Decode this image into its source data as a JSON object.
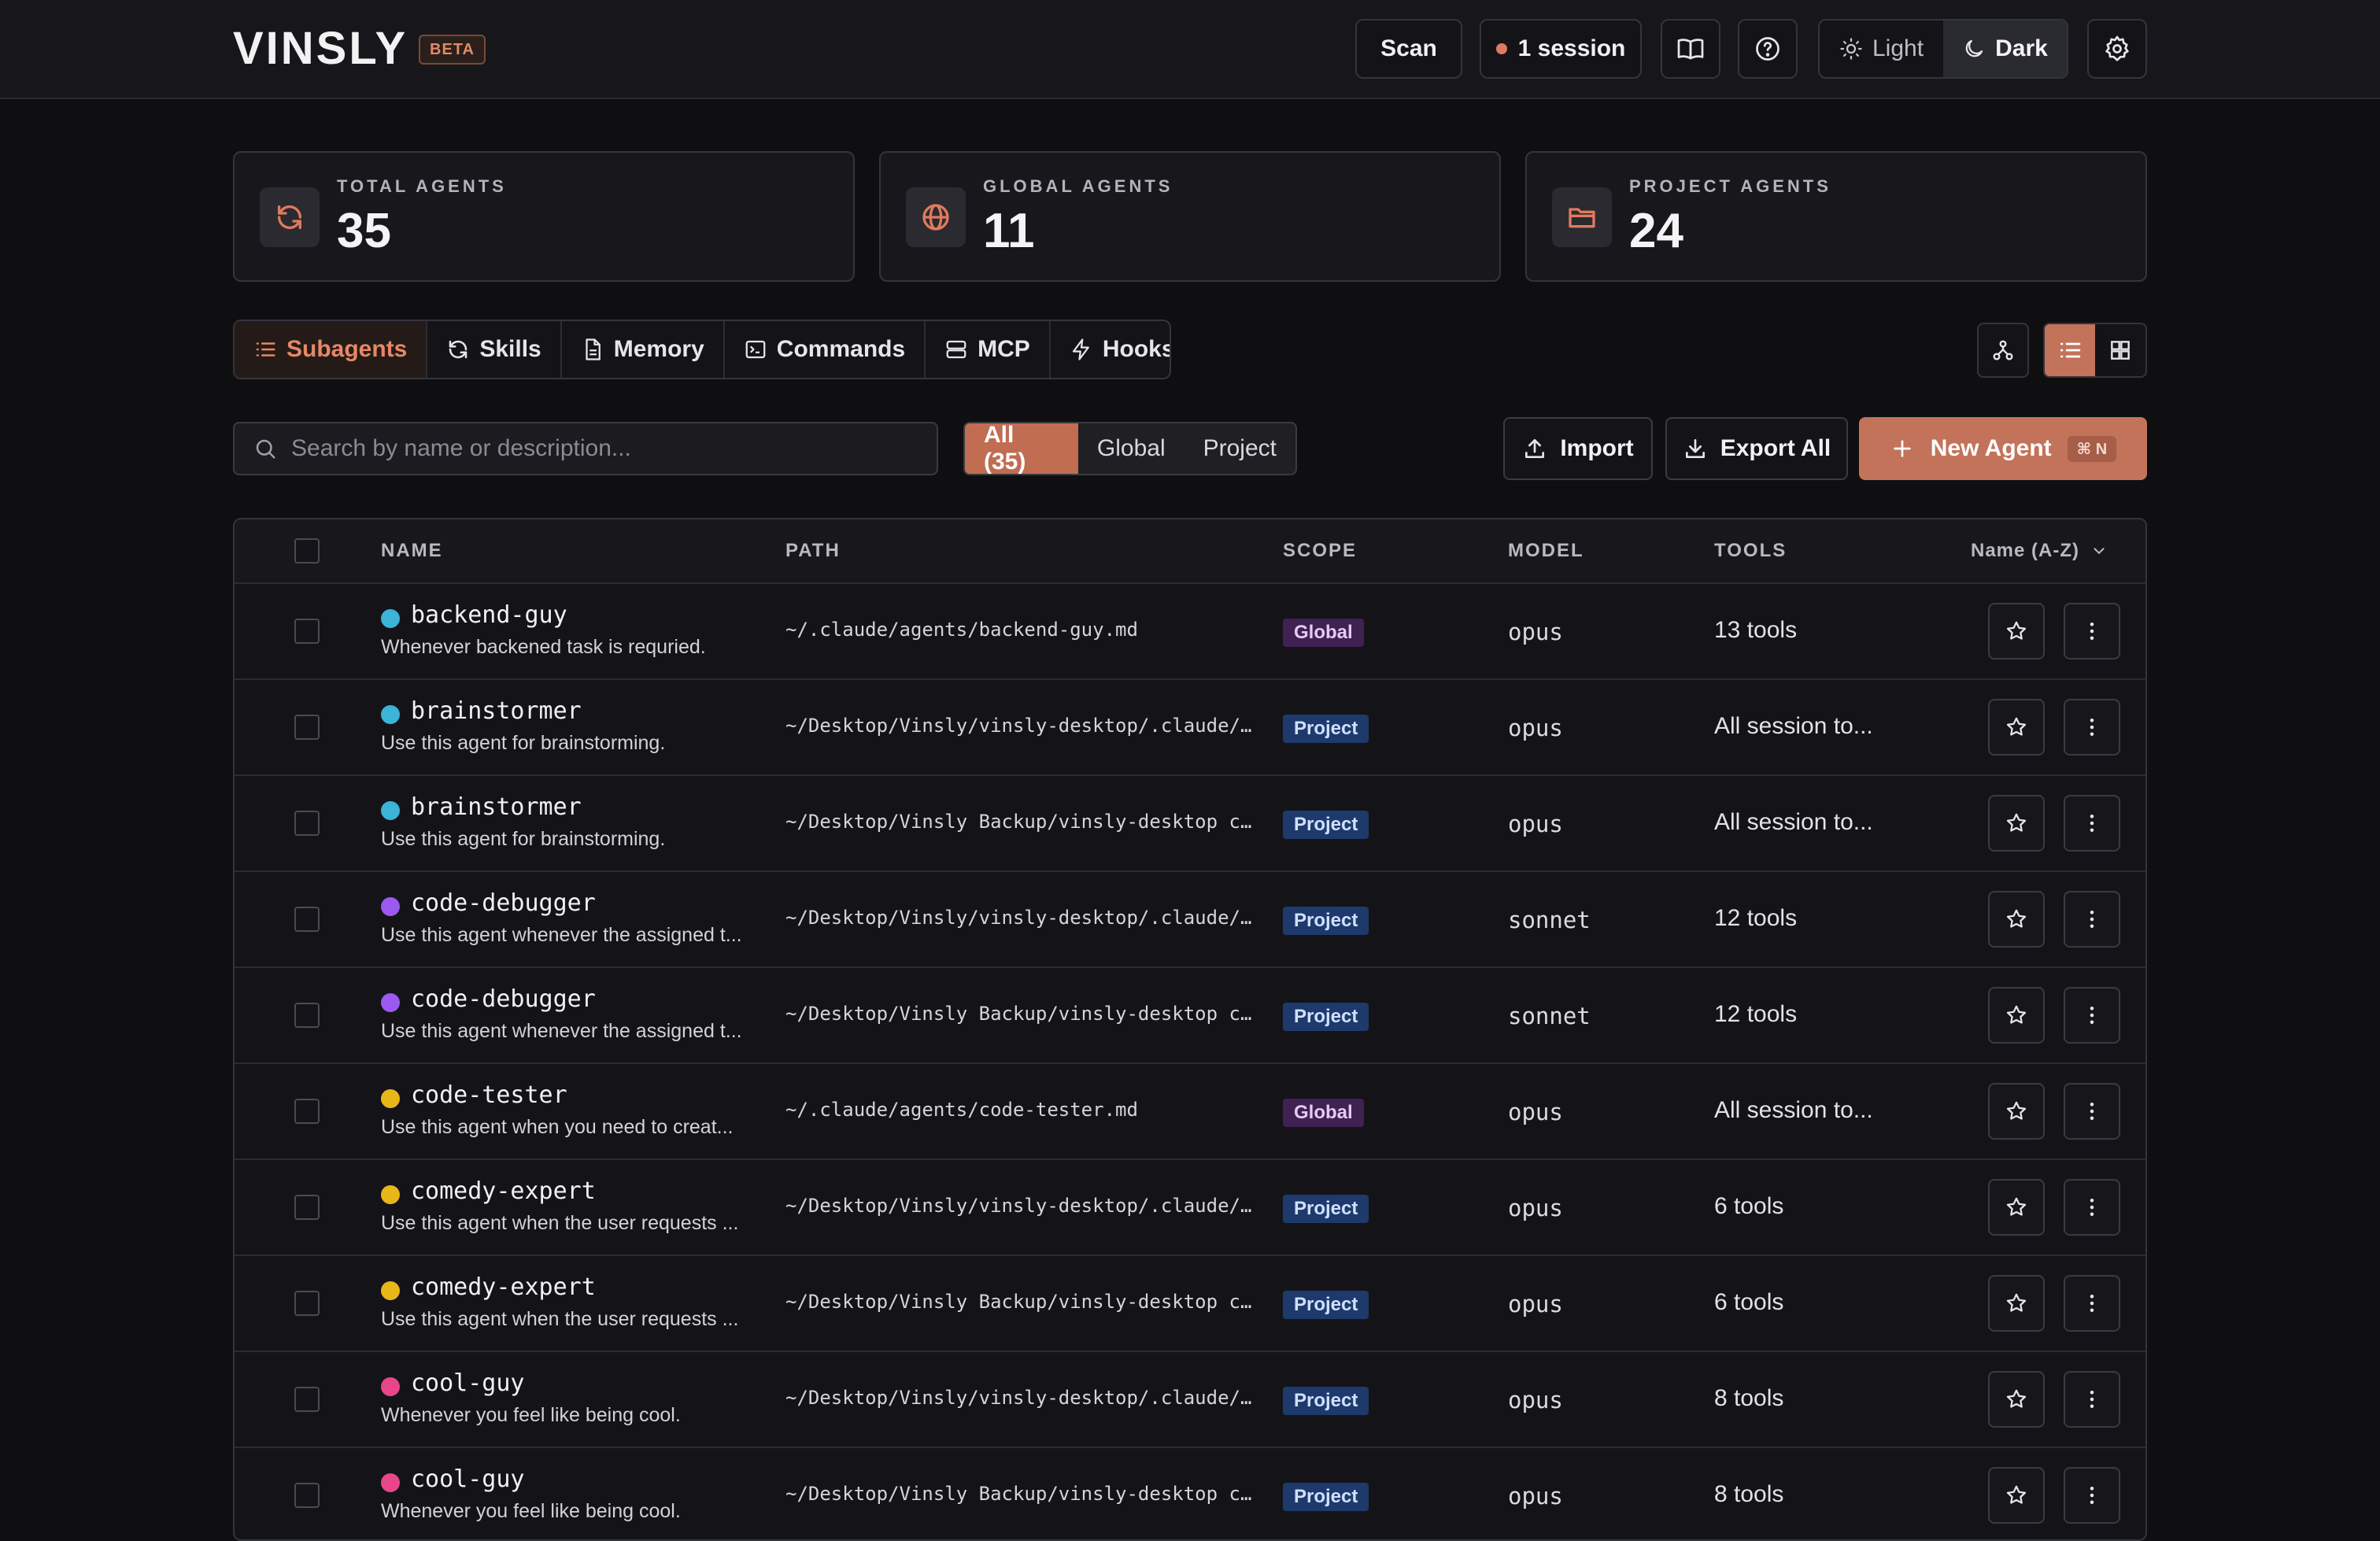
{
  "header": {
    "logo": "VINSLY",
    "beta": "BETA",
    "scan_label": "Scan",
    "session_label": "1 session",
    "theme": {
      "light": "Light",
      "dark": "Dark",
      "active": "dark"
    }
  },
  "stats": [
    {
      "label": "TOTAL AGENTS",
      "value": "35",
      "icon": "refresh-icon"
    },
    {
      "label": "GLOBAL AGENTS",
      "value": "11",
      "icon": "globe-icon"
    },
    {
      "label": "PROJECT AGENTS",
      "value": "24",
      "icon": "folder-icon"
    }
  ],
  "tabs": [
    {
      "label": "Subagents",
      "icon": "list-icon",
      "active": true
    },
    {
      "label": "Skills",
      "icon": "refresh-icon"
    },
    {
      "label": "Memory",
      "icon": "file-icon"
    },
    {
      "label": "Commands",
      "icon": "terminal-icon"
    },
    {
      "label": "MCP",
      "icon": "server-icon"
    },
    {
      "label": "Hooks",
      "icon": "bolt-icon"
    }
  ],
  "search": {
    "placeholder": "Search by name or description..."
  },
  "filters": [
    {
      "label": "All (35)",
      "active": true
    },
    {
      "label": "Global"
    },
    {
      "label": "Project"
    }
  ],
  "actions": {
    "import_label": "Import",
    "export_label": "Export All",
    "new_label": "New Agent",
    "new_shortcut": "⌘ N"
  },
  "table": {
    "columns": {
      "name": "NAME",
      "path": "PATH",
      "scope": "SCOPE",
      "model": "MODEL",
      "tools": "TOOLS",
      "sort": "Name (A-Z)"
    },
    "rows": [
      {
        "name": "backend-guy",
        "desc": "Whenever backened task is requried.",
        "path": "~/.claude/agents/backend-guy.md",
        "scope": "Global",
        "model": "opus",
        "tools": "13 tools",
        "color": "#3bb4d8"
      },
      {
        "name": "brainstormer",
        "desc": "Use this agent for brainstorming.",
        "path": "~/Desktop/Vinsly/vinsly-desktop/.claude/…",
        "scope": "Project",
        "model": "opus",
        "tools": "All session to...",
        "color": "#3bb4d8"
      },
      {
        "name": "brainstormer",
        "desc": "Use this agent for brainstorming.",
        "path": "~/Desktop/Vinsly Backup/vinsly-desktop c…",
        "scope": "Project",
        "model": "opus",
        "tools": "All session to...",
        "color": "#3bb4d8"
      },
      {
        "name": "code-debugger",
        "desc": "Use this agent whenever the assigned t...",
        "path": "~/Desktop/Vinsly/vinsly-desktop/.claude/…",
        "scope": "Project",
        "model": "sonnet",
        "tools": "12 tools",
        "color": "#9b59f0"
      },
      {
        "name": "code-debugger",
        "desc": "Use this agent whenever the assigned t...",
        "path": "~/Desktop/Vinsly Backup/vinsly-desktop c…",
        "scope": "Project",
        "model": "sonnet",
        "tools": "12 tools",
        "color": "#9b59f0"
      },
      {
        "name": "code-tester",
        "desc": "Use this agent when you need to creat...",
        "path": "~/.claude/agents/code-tester.md",
        "scope": "Global",
        "model": "opus",
        "tools": "All session to...",
        "color": "#e8b618"
      },
      {
        "name": "comedy-expert",
        "desc": "Use this agent when the user requests ...",
        "path": "~/Desktop/Vinsly/vinsly-desktop/.claude/…",
        "scope": "Project",
        "model": "opus",
        "tools": "6 tools",
        "color": "#e8b618"
      },
      {
        "name": "comedy-expert",
        "desc": "Use this agent when the user requests ...",
        "path": "~/Desktop/Vinsly Backup/vinsly-desktop c…",
        "scope": "Project",
        "model": "opus",
        "tools": "6 tools",
        "color": "#e8b618"
      },
      {
        "name": "cool-guy",
        "desc": "Whenever you feel like being cool.",
        "path": "~/Desktop/Vinsly/vinsly-desktop/.claude/…",
        "scope": "Project",
        "model": "opus",
        "tools": "8 tools",
        "color": "#e8468a"
      },
      {
        "name": "cool-guy",
        "desc": "Whenever you feel like being cool.",
        "path": "~/Desktop/Vinsly Backup/vinsly-desktop c…",
        "scope": "Project",
        "model": "opus",
        "tools": "8 tools",
        "color": "#e8468a"
      }
    ]
  }
}
